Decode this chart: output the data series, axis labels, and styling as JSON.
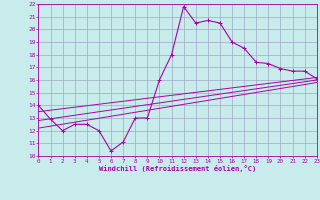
{
  "xlabel": "Windchill (Refroidissement éolien,°C)",
  "bg_color": "#c8ecec",
  "grid_color": "#9999bb",
  "line_color": "#aa00aa",
  "xlim": [
    0,
    23
  ],
  "ylim": [
    10,
    22
  ],
  "xticks": [
    0,
    1,
    2,
    3,
    4,
    5,
    6,
    7,
    8,
    9,
    10,
    11,
    12,
    13,
    14,
    15,
    16,
    17,
    18,
    19,
    20,
    21,
    22,
    23
  ],
  "yticks": [
    10,
    11,
    12,
    13,
    14,
    15,
    16,
    17,
    18,
    19,
    20,
    21,
    22
  ],
  "main_line_x": [
    0,
    1,
    2,
    3,
    4,
    5,
    6,
    7,
    8,
    9,
    10,
    11,
    12,
    13,
    14,
    15,
    16,
    17,
    18,
    19,
    20,
    21,
    22,
    23
  ],
  "main_line_y": [
    14.0,
    12.9,
    12.0,
    12.5,
    12.5,
    12.0,
    10.4,
    11.1,
    13.0,
    13.0,
    16.0,
    18.0,
    21.8,
    20.5,
    20.7,
    20.5,
    19.0,
    18.5,
    17.4,
    17.3,
    16.9,
    16.7,
    16.7,
    16.1
  ],
  "line2_x": [
    0,
    23
  ],
  "line2_y": [
    13.5,
    16.2
  ],
  "line3_x": [
    0,
    23
  ],
  "line3_y": [
    12.8,
    16.0
  ],
  "line4_x": [
    0,
    23
  ],
  "line4_y": [
    12.2,
    15.8
  ]
}
